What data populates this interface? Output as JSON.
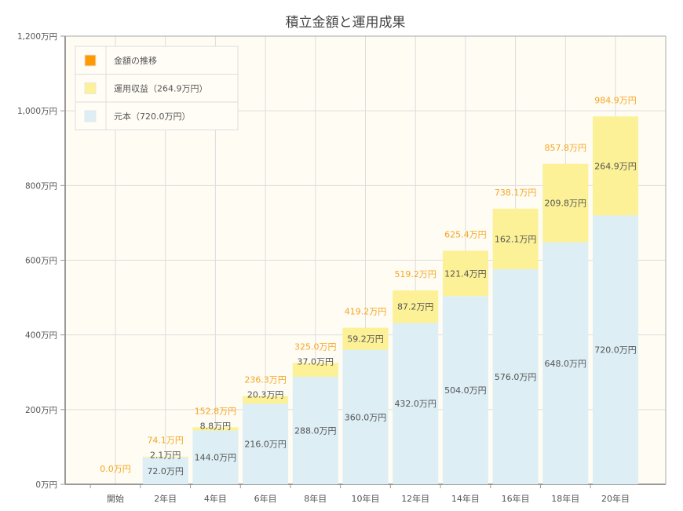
{
  "chart_data": {
    "type": "bar",
    "stacked": true,
    "title": "積立金額と運用成果",
    "categories": [
      "開始",
      "2年目",
      "4年目",
      "6年目",
      "8年目",
      "10年目",
      "12年目",
      "14年目",
      "16年目",
      "18年目",
      "20年目"
    ],
    "series": [
      {
        "name": "元本（720.0万円）",
        "color": "#ddeef5",
        "values": [
          0,
          72.0,
          144.0,
          216.0,
          288.0,
          360.0,
          432.0,
          504.0,
          576.0,
          648.0,
          720.0
        ]
      },
      {
        "name": "運用収益（264.9万円）",
        "color": "#fcf196",
        "values": [
          0,
          2.1,
          8.8,
          20.3,
          37.0,
          59.2,
          87.2,
          121.4,
          162.1,
          209.8,
          264.9
        ]
      }
    ],
    "totals": {
      "name": "金額の推移",
      "color": "#ff9900",
      "values": [
        0.0,
        74.1,
        152.8,
        236.3,
        325.0,
        419.2,
        519.2,
        625.4,
        738.1,
        857.8,
        984.9
      ]
    },
    "unit": "万円",
    "ylim": [
      0,
      1200
    ],
    "yticks": [
      "0万円",
      "200万円",
      "400万円",
      "600万円",
      "800万円",
      "1,000万円",
      "1,200万円"
    ],
    "grid": true,
    "legend_position": "top-left",
    "colors": {
      "plot_bg": "#fffcf3",
      "total_label": "#f5a623",
      "axis": "#999999"
    }
  }
}
